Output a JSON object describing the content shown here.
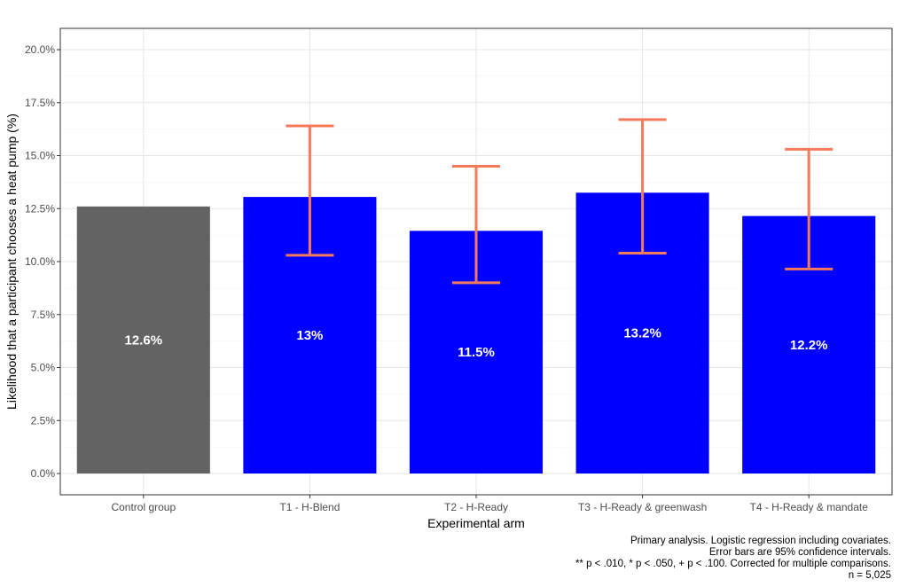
{
  "chart_data": {
    "type": "bar",
    "xlabel": "Experimental arm",
    "ylabel": "Likelihood that a participant chooses a heat pump (%)",
    "ylim": [
      0,
      20
    ],
    "yticks": [
      0,
      2.5,
      5,
      7.5,
      10,
      12.5,
      15,
      17.5,
      20
    ],
    "ytick_labels": [
      "0.0%",
      "2.5%",
      "5.0%",
      "7.5%",
      "10.0%",
      "12.5%",
      "15.0%",
      "17.5%",
      "20.0%"
    ],
    "grid": true,
    "categories": [
      "Control group",
      "T1 - H-Blend",
      "T2 - H-Ready",
      "T3 - H-Ready & greenwash",
      "T4 - H-Ready & mandate"
    ],
    "values": [
      12.6,
      13.05,
      11.45,
      13.25,
      12.15
    ],
    "data_labels": [
      "12.6%",
      "13%",
      "11.5%",
      "13.2%",
      "12.2%"
    ],
    "error_bars": [
      null,
      [
        10.3,
        16.4
      ],
      [
        9.0,
        14.5
      ],
      [
        10.4,
        16.7
      ],
      [
        9.65,
        15.3
      ]
    ],
    "bar_colors": [
      "#636363",
      "#0000ff",
      "#0000ff",
      "#0000ff",
      "#0000ff"
    ],
    "error_bar_color": "#f37a5a",
    "captions": [
      "Primary analysis. Logistic regression including covariates.",
      "Error bars are 95% confidence intervals.",
      "** p < .010, * p < .050, + p < .100. Corrected for multiple comparisons.",
      "n = 5,025"
    ]
  }
}
